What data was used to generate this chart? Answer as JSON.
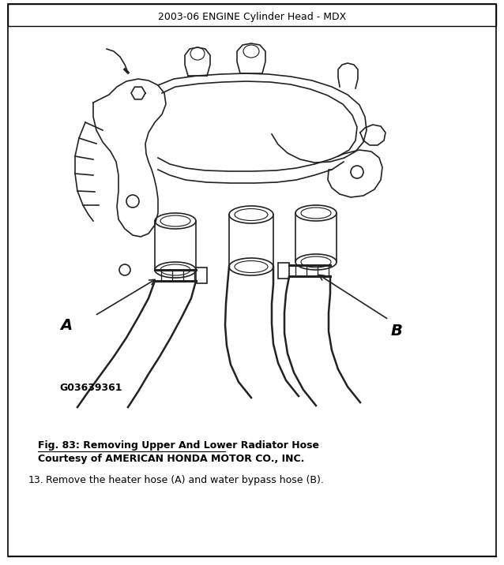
{
  "header_text": "2003-06 ENGINE Cylinder Head - MDX",
  "fig_caption_line1": "Fig. 83: Removing Upper And Lower Radiator Hose",
  "fig_caption_line2": "Courtesy of AMERICAN HONDA MOTOR CO., INC.",
  "step_number": "13.",
  "step_text": "Remove the heater hose (A) and water bypass hose (B).",
  "figure_id": "G03639361",
  "label_A": "A",
  "label_B": "B",
  "bg_color": "#ffffff",
  "border_color": "#000000",
  "text_color": "#000000",
  "header_fontsize": 9,
  "caption_fontsize": 9,
  "step_fontsize": 9,
  "fig_id_fontsize": 9
}
